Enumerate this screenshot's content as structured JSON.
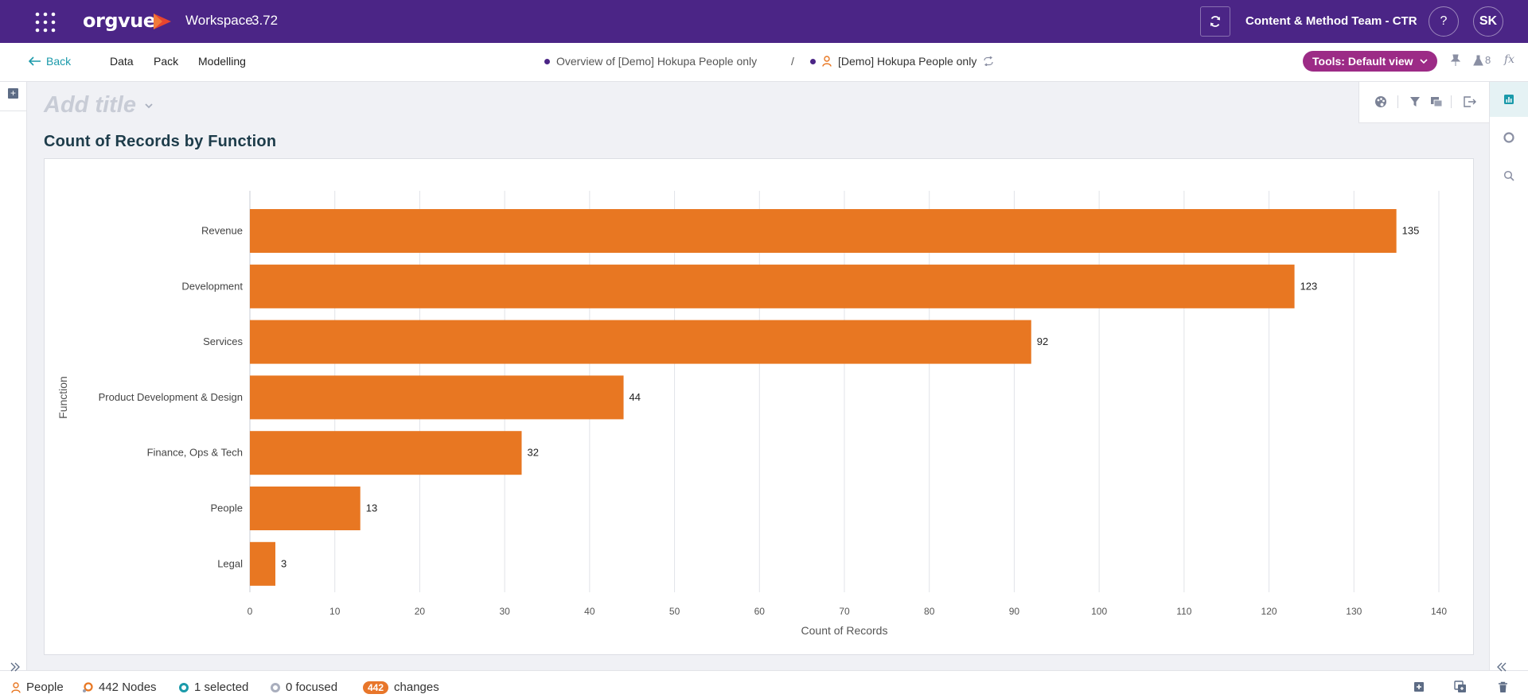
{
  "topbar": {
    "logo": "orgvue",
    "workspace_label": "Workspace",
    "workspace_version": "3.72",
    "team_name": "Content & Method Team - CTR",
    "help_label": "?",
    "user_initials": "SK"
  },
  "navbar": {
    "back_label": "Back",
    "menu": [
      "Data",
      "Pack",
      "Modelling"
    ],
    "breadcrumb_1": "Overview of [Demo] Hokupa People only",
    "breadcrumb_sep": "/",
    "breadcrumb_2": "[Demo] Hokupa People only",
    "tools_label": "Tools: Default view",
    "flask_count": "8",
    "fx_label": "fx"
  },
  "main": {
    "add_title_placeholder": "Add title",
    "chart_heading": "Count of Records by Function"
  },
  "statusbar": {
    "dataset": "People",
    "nodes": "442 Nodes",
    "selected": "1 selected",
    "focused": "0 focused",
    "changes_count": "442",
    "changes_label": "changes"
  },
  "colors": {
    "topbar": "#4b2586",
    "accent": "#1b9aaa",
    "bar": "#e87722",
    "tools": "#9c2b86"
  },
  "chart_data": {
    "type": "bar",
    "orientation": "horizontal",
    "title": "Count of Records by Function",
    "categories": [
      "Revenue",
      "Development",
      "Services",
      "Product Development & Design",
      "Finance, Ops & Tech",
      "People",
      "Legal"
    ],
    "values": [
      135,
      123,
      92,
      44,
      32,
      13,
      3
    ],
    "xlabel": "Count of Records",
    "ylabel": "Function",
    "xlim": [
      0,
      140
    ],
    "xticks": [
      0,
      10,
      20,
      30,
      40,
      50,
      60,
      70,
      80,
      90,
      100,
      110,
      120,
      130,
      140
    ],
    "grid": true,
    "data_labels": true
  }
}
